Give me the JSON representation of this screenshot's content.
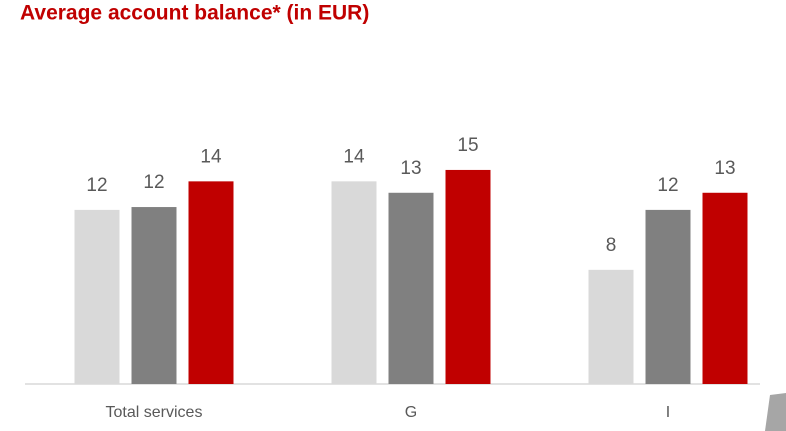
{
  "chart_data": {
    "type": "bar",
    "title": "Average account balance* (in EUR)",
    "categories": [
      "Total services",
      "G",
      "I"
    ],
    "series": [
      {
        "color": "#d9d9d9",
        "values": [
          12.2,
          14.2,
          8.0
        ],
        "value_labels": [
          "12",
          "14",
          "8"
        ]
      },
      {
        "color": "#808080",
        "values": [
          12.4,
          13.4,
          12.2
        ],
        "value_labels": [
          "12",
          "13",
          "12"
        ]
      },
      {
        "color": "#c00000",
        "values": [
          14.2,
          15.0,
          13.4
        ],
        "value_labels": [
          "14",
          "15",
          "13"
        ]
      }
    ],
    "ylim": [
      0,
      17
    ]
  }
}
